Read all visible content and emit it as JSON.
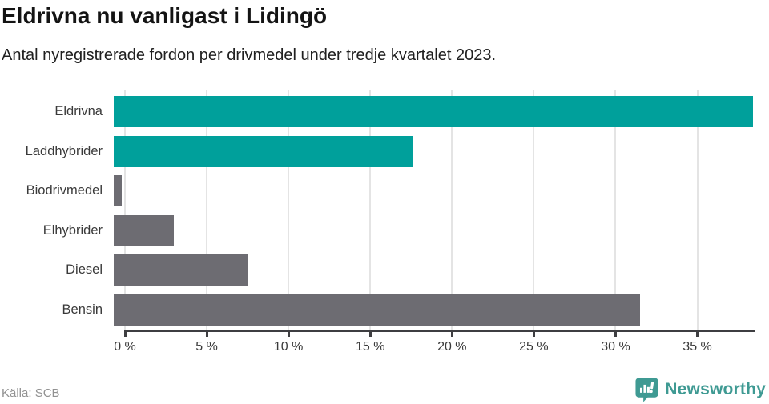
{
  "header": {
    "title": "Eldrivna nu vanligast i Lidingö",
    "subtitle": "Antal nyregistrerade fordon per drivmedel under tredje kvartalet 2023."
  },
  "footer": {
    "source": "Källa: SCB",
    "brand_name": "Newsworthy",
    "brand_color": "#3f9a93",
    "brand_icon": "bar-chart-speech-bubble-icon"
  },
  "colors": {
    "highlight_bar": "#00a09b",
    "muted_bar": "#6d6c72",
    "gridline": "#e4e4e4",
    "axis": "#3e3e41"
  },
  "chart_data": {
    "type": "bar",
    "orientation": "horizontal",
    "title": "Eldrivna nu vanligast i Lidingö",
    "subtitle": "Antal nyregistrerade fordon per drivmedel under tredje kvartalet 2023.",
    "categories": [
      "Eldrivna",
      "Laddhybrider",
      "Biodrivmedel",
      "Elhybrider",
      "Diesel",
      "Bensin"
    ],
    "values": [
      38.4,
      18.0,
      0.5,
      3.6,
      8.1,
      31.6
    ],
    "unit": "%",
    "bar_colors": [
      "#00a09b",
      "#00a09b",
      "#6d6c72",
      "#6d6c72",
      "#6d6c72",
      "#6d6c72"
    ],
    "xlim": [
      0,
      38.5
    ],
    "xticks": [
      0,
      5,
      10,
      15,
      20,
      25,
      30,
      35
    ],
    "xtick_labels": [
      "0 %",
      "5 %",
      "10 %",
      "15 %",
      "20 %",
      "25 %",
      "30 %",
      "35 %"
    ],
    "grid": "vertical",
    "legend": "none"
  }
}
